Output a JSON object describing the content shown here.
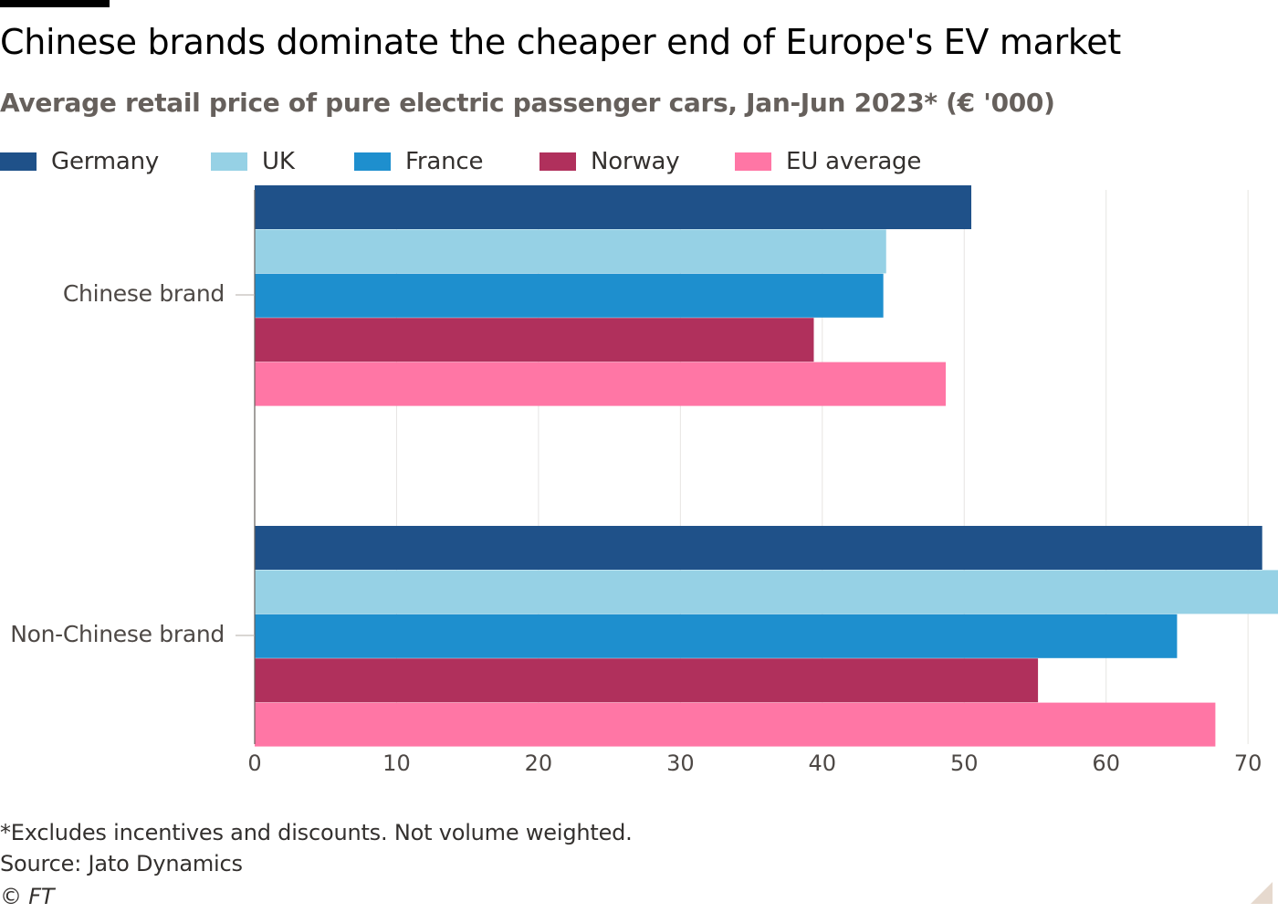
{
  "chart_data": {
    "type": "bar",
    "orientation": "horizontal",
    "title": "Chinese brands dominate the cheaper end of Europe's EV market",
    "subtitle": "Average retail price of pure electric passenger cars, Jan-Jun 2023* (€ '000)",
    "categories": [
      "Chinese brand",
      "Non-Chinese brand"
    ],
    "series": [
      {
        "name": "Germany",
        "color": "#1f5189",
        "values": [
          50.5,
          71.0
        ]
      },
      {
        "name": "UK",
        "color": "#96d1e5",
        "values": [
          44.5,
          73.5
        ]
      },
      {
        "name": "France",
        "color": "#1e8fce",
        "values": [
          44.3,
          65.0
        ]
      },
      {
        "name": "Norway",
        "color": "#b0305c",
        "values": [
          39.4,
          55.2
        ]
      },
      {
        "name": "EU average",
        "color": "#ff76a5",
        "values": [
          48.7,
          67.7
        ]
      }
    ],
    "xlim": [
      0,
      72
    ],
    "xticks": [
      0,
      10,
      20,
      30,
      40,
      50,
      60,
      70
    ],
    "xlabel": "",
    "ylabel": "",
    "grid": true,
    "legend": "top-left"
  },
  "footnote": "*Excludes incentives and discounts. Not volume weighted.",
  "source": "Source: Jato Dynamics",
  "copyright": "© FT"
}
